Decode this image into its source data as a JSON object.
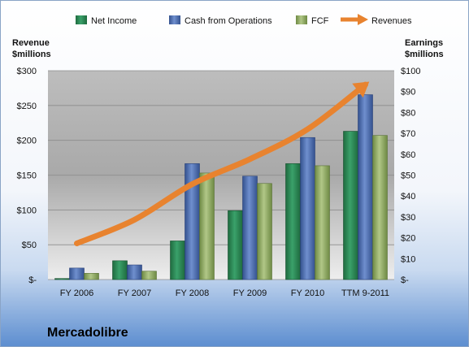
{
  "chart_data": {
    "type": "bar",
    "categories": [
      "FY 2006",
      "FY 2007",
      "FY 2008",
      "FY 2009",
      "FY 2010",
      "TTM 9-2011"
    ],
    "series": [
      {
        "name": "Net Income",
        "axis": "right",
        "color": "#2e8b57",
        "values": [
          0.5,
          9,
          18.5,
          33,
          55.5,
          71
        ]
      },
      {
        "name": "Cash from Operations",
        "axis": "right",
        "color": "#4f6fb0",
        "values": [
          5.5,
          7,
          55.5,
          49.5,
          68,
          88.5
        ]
      },
      {
        "name": "FCF",
        "axis": "right",
        "color": "#93ad65",
        "values": [
          3,
          4,
          51,
          46,
          54.5,
          69
        ]
      }
    ],
    "line_series": {
      "name": "Revenues",
      "axis": "left",
      "color": "#e8832f",
      "style": "arrow",
      "values": [
        52,
        86,
        137,
        173,
        216,
        280
      ]
    },
    "left_axis": {
      "title_lines": [
        "Revenue",
        "$millions"
      ],
      "ticks": [
        "$-",
        "$50",
        "$100",
        "$150",
        "$200",
        "$250",
        "$300"
      ],
      "range": [
        0,
        300
      ]
    },
    "right_axis": {
      "title_lines": [
        "Earnings",
        "$millions"
      ],
      "ticks": [
        "$-",
        "$10",
        "$20",
        "$30",
        "$40",
        "$50",
        "$60",
        "$70",
        "$80",
        "$90",
        "$100"
      ],
      "range": [
        0,
        100
      ]
    },
    "legend_position": "top",
    "grid": true
  },
  "company": "Mercadolibre"
}
